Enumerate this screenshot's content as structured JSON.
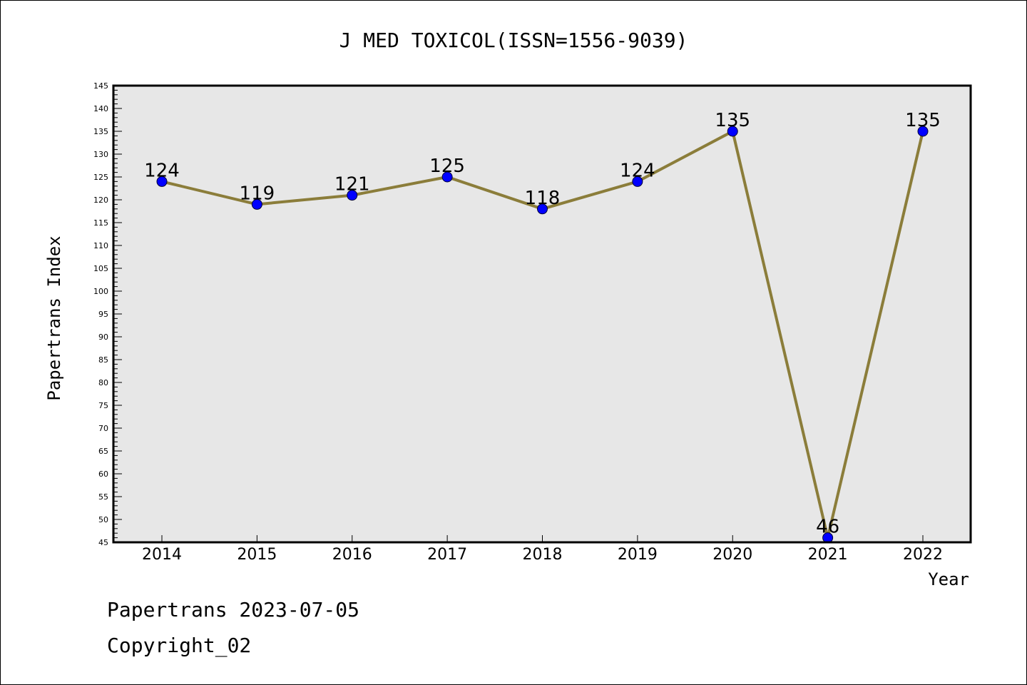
{
  "chart_data": {
    "type": "line",
    "title": "J MED TOXICOL(ISSN=1556-9039)",
    "xlabel": "Year",
    "ylabel": "Papertrans Index",
    "categories": [
      "2014",
      "2015",
      "2016",
      "2017",
      "2018",
      "2019",
      "2020",
      "2021",
      "2022"
    ],
    "values": [
      124,
      119,
      121,
      125,
      118,
      124,
      135,
      46,
      135
    ],
    "data_labels": [
      "124",
      "119",
      "121",
      "125",
      "118",
      "124",
      "135",
      "46",
      "135"
    ],
    "ylim": [
      45,
      145
    ],
    "yticks": [
      45,
      50,
      55,
      60,
      65,
      70,
      75,
      80,
      85,
      90,
      95,
      100,
      105,
      110,
      115,
      120,
      125,
      130,
      135,
      140,
      145
    ],
    "grid": false,
    "line_color": "#8b7d3a",
    "marker_color": "#0000ff",
    "plot_background": "#e7e7e7"
  },
  "footer": {
    "line1": "Papertrans 2023-07-05",
    "line2": "Copyright_02"
  }
}
